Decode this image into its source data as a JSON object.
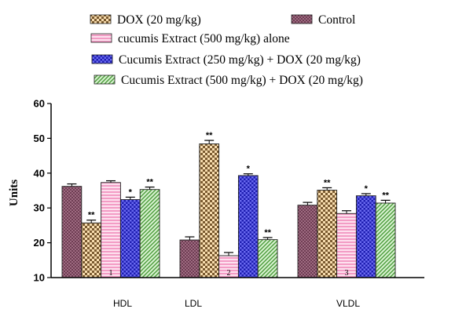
{
  "chart_data": {
    "type": "bar",
    "categories": [
      "HDL",
      "LDL",
      "VLDL"
    ],
    "group_numbers": [
      "1",
      "2",
      "3"
    ],
    "ylabel": "Units",
    "ylim": [
      10,
      60
    ],
    "yticks": [
      10,
      20,
      30,
      40,
      50,
      60
    ],
    "legend_placement": "top",
    "series": [
      {
        "name": "Control",
        "color": "#a8748a",
        "pattern": "crosshatch-fine",
        "values": [
          36.2,
          20.8,
          30.8
        ],
        "errors": [
          0.7,
          0.9,
          0.8
        ],
        "sig": [
          "",
          "",
          ""
        ]
      },
      {
        "name": "DOX (20 mg/kg)",
        "color": "#f5d4a0",
        "pattern": "checker",
        "values": [
          25.7,
          48.4,
          35.1
        ],
        "errors": [
          0.8,
          1.0,
          0.7
        ],
        "sig": [
          "**",
          "**",
          "**"
        ]
      },
      {
        "name": "cucumis Extract (500 mg/kg) alone",
        "color": "#fbc6de",
        "pattern": "hlines",
        "values": [
          37.3,
          16.3,
          28.4
        ],
        "errors": [
          0.5,
          0.9,
          0.8
        ],
        "sig": [
          "",
          "",
          ""
        ]
      },
      {
        "name": "Cucumis Extract (250 mg/kg) + DOX (20 mg/kg)",
        "color": "#3434d8",
        "pattern": "checker-blue",
        "values": [
          32.4,
          39.3,
          33.5
        ],
        "errors": [
          0.7,
          0.5,
          0.6
        ],
        "sig": [
          "*",
          "*",
          "*"
        ]
      },
      {
        "name": "Cucumis Extract (500 mg/kg) + DOX (20 mg/kg)",
        "color": "#b5e6a8",
        "pattern": "diagonal",
        "values": [
          35.3,
          20.9,
          31.4
        ],
        "errors": [
          0.7,
          0.6,
          0.8
        ],
        "sig": [
          "**",
          "**",
          "**"
        ]
      }
    ]
  },
  "legend_rows": [
    {
      "items": [
        1,
        0
      ]
    },
    {
      "items": [
        2
      ]
    },
    {
      "items": [
        3
      ]
    },
    {
      "items": [
        4
      ]
    }
  ]
}
